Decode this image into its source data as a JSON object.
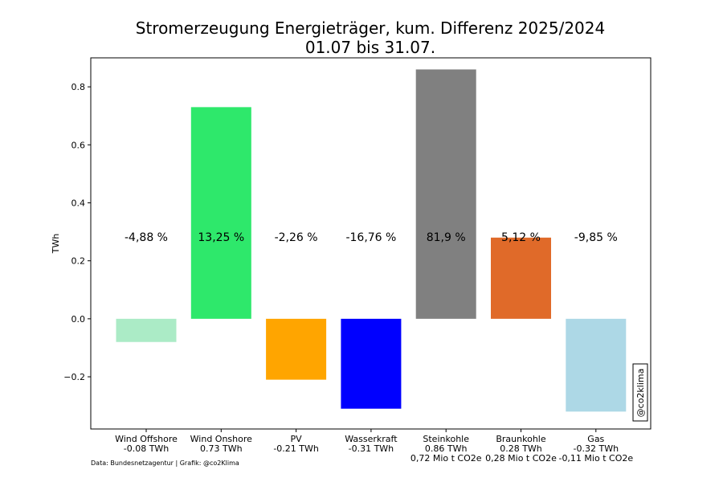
{
  "chart_data": {
    "type": "bar",
    "title": "Stromerzeugung Energieträger, kum. Differenz 2025/2024",
    "subtitle": "01.07 bis 31.07.",
    "ylabel": "TWh",
    "ylim": [
      -0.38,
      0.9
    ],
    "yticks": [
      -0.2,
      0.0,
      0.2,
      0.4,
      0.6,
      0.8
    ],
    "ytick_labels": [
      "−0.2",
      "0.0",
      "0.2",
      "0.4",
      "0.6",
      "0.8"
    ],
    "grid": false,
    "categories": [
      "Wind Offshore",
      "Wind Onshore",
      "PV",
      "Wasserkraft",
      "Steinkohle",
      "Braunkohle",
      "Gas"
    ],
    "values": [
      -0.08,
      0.73,
      -0.21,
      -0.31,
      0.86,
      0.28,
      -0.32
    ],
    "value_labels": [
      "-0.08 TWh",
      "0.73 TWh",
      "-0.21 TWh",
      "-0.31 TWh",
      "0.86 TWh",
      "0.28 TWh",
      "-0.32 TWh"
    ],
    "co2_labels": [
      "",
      "",
      "",
      "",
      "0,72 Mio t CO2e",
      "0,28 Mio t CO2e",
      "-0,11 Mio t CO2e"
    ],
    "percent_labels": [
      "-4,88 %",
      "13,25 %",
      "-2,26 %",
      "-16,76 %",
      "81,9 %",
      "5,12 %",
      "-9,85 %"
    ],
    "colors": [
      "#abebc6",
      "#2ee86b",
      "#ffa500",
      "#0000ff",
      "#808080",
      "#e06a29",
      "#add8e6"
    ],
    "source": "Data: Bundesnetzagentur | Grafik: @co2Klima",
    "watermark": "@co2klima"
  }
}
